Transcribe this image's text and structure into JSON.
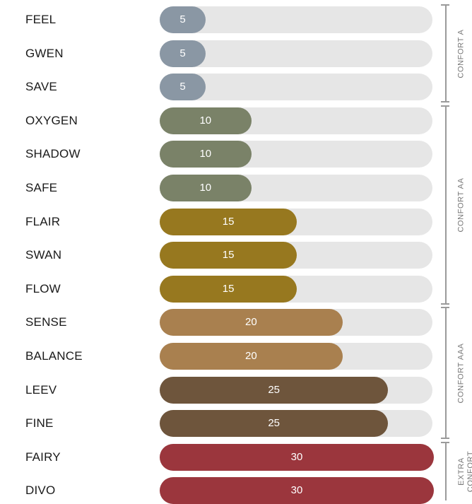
{
  "chart_data": {
    "type": "bar",
    "orientation": "horizontal",
    "categories": [
      "FEEL",
      "GWEN",
      "SAVE",
      "OXYGEN",
      "SHADOW",
      "SAFE",
      "FLAIR",
      "SWAN",
      "FLOW",
      "SENSE",
      "BALANCE",
      "LEEV",
      "FINE",
      "FAIRY",
      "DIVO"
    ],
    "values": [
      5,
      5,
      5,
      10,
      10,
      10,
      15,
      15,
      15,
      20,
      20,
      25,
      25,
      30,
      30
    ],
    "xlim": [
      0,
      30
    ],
    "colors": {
      "5": "#8a97a4",
      "10": "#7a8268",
      "15": "#97781f",
      "20": "#a9804f",
      "25": "#6e553c",
      "30": "#9b363d",
      "track": "#e6e6e6"
    },
    "groups": [
      {
        "label": "CONFORT A",
        "start": 0,
        "end": 2
      },
      {
        "label": "CONFORT AA",
        "start": 3,
        "end": 8
      },
      {
        "label": "CONFORT AAA",
        "start": 9,
        "end": 12
      },
      {
        "label": "EXTRA CONFORT",
        "start": 13,
        "end": 14
      }
    ]
  }
}
